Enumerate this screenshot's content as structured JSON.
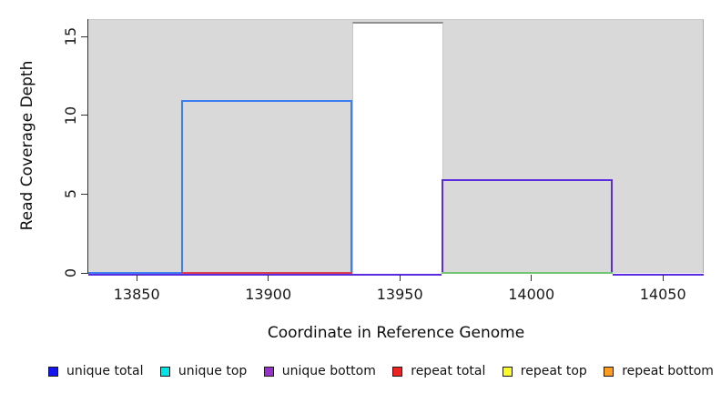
{
  "chart_data": {
    "type": "area",
    "title": "",
    "xlabel": "Coordinate in Reference Genome",
    "ylabel": "Read Coverage Depth",
    "x_ticks": [
      13850,
      13900,
      13950,
      14000,
      14050
    ],
    "y_ticks": [
      0,
      5,
      10,
      15
    ],
    "xlim": [
      13831.6,
      14065.5
    ],
    "ylim": [
      0,
      16.1
    ],
    "grid": false,
    "legend_position": "bottom",
    "panel_bg": "#d9d9d9",
    "axis_color": "#333333",
    "text_color": "#111111",
    "masked_region": {
      "name": "masked-window",
      "x0": 13932,
      "x1": 13966,
      "depth": 16,
      "fill": "#ffffff",
      "border_top": "#8f8f8f",
      "border_side": "#c8c8c8"
    },
    "steps": [
      {
        "name": "unique-total",
        "x0": 13867,
        "x1": 13932,
        "depth": 11,
        "color": "#3e7ef2"
      },
      {
        "name": "unique-bottom",
        "x0": 13966,
        "x1": 14031,
        "depth": 6,
        "color": "#5b2be0"
      }
    ],
    "baseline_segments": [
      {
        "name": "unique-bottom-zero-left",
        "x0": 13831.6,
        "x1": 13966,
        "color": "#5b2be0",
        "row": 1
      },
      {
        "name": "unique-bottom-zero-right",
        "x0": 14031,
        "x1": 14065.5,
        "color": "#5b2be0",
        "row": 1
      },
      {
        "name": "unique-total-zero",
        "x0": 13831.6,
        "x1": 13867,
        "color": "#3e7ef2",
        "row": 0
      },
      {
        "name": "repeat-total-zero",
        "x0": 13867,
        "x1": 13932,
        "color": "#dc4050",
        "row": 0
      },
      {
        "name": "unique-top-zero",
        "x0": 13966,
        "x1": 14031,
        "color": "#72c472",
        "row": 0
      }
    ],
    "legend": {
      "swatch_border": "#1a1a1a",
      "items": [
        {
          "label": "unique total",
          "fill": "#1414ee"
        },
        {
          "label": "unique top",
          "fill": "#00e6e6"
        },
        {
          "label": "unique bottom",
          "fill": "#9932cc"
        },
        {
          "label": "repeat total",
          "fill": "#ee2222"
        },
        {
          "label": "repeat top",
          "fill": "#fafa26"
        },
        {
          "label": "repeat bottom",
          "fill": "#ff9d1e"
        }
      ]
    }
  }
}
